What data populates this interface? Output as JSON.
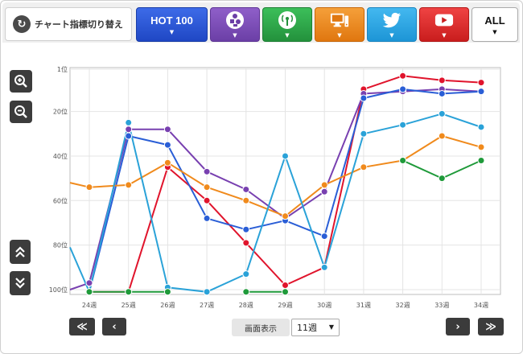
{
  "toolbar": {
    "switch_label": "チャート指標切り替え",
    "switch_icon": "refresh-icon",
    "buttons": [
      {
        "id": "hot100",
        "label": "HOT 100",
        "color": "#2d59d6",
        "icon": ""
      },
      {
        "id": "sales",
        "label": "",
        "color": "#7e4fb8",
        "icon": "sales-icon"
      },
      {
        "id": "radio",
        "label": "",
        "color": "#2eaa4a",
        "icon": "radio-antenna-icon"
      },
      {
        "id": "lookup",
        "label": "",
        "color": "#f08a1c",
        "icon": "pc-lookup-icon"
      },
      {
        "id": "twitter",
        "label": "",
        "color": "#2aa6e6",
        "icon": "twitter-bird-icon"
      },
      {
        "id": "youtube",
        "label": "",
        "color": "#e02b2b",
        "icon": "youtube-play-icon"
      },
      {
        "id": "all",
        "label": "ALL",
        "color": "#ffffff",
        "icon": ""
      }
    ]
  },
  "controls": {
    "zoom_in_icon": "zoom-in-icon",
    "zoom_out_icon": "zoom-out-icon",
    "scroll_up_icon": "double-chevron-up-icon",
    "scroll_down_icon": "double-chevron-down-icon"
  },
  "footer": {
    "first_label": "≪",
    "prev_label": "‹",
    "next_label": "›",
    "last_label": "≫",
    "display_label": "画面表示",
    "display_value": "11週"
  },
  "chart_data": {
    "type": "line",
    "title": "",
    "xlabel": "",
    "ylabel": "",
    "categories": [
      "24週",
      "25週",
      "26週",
      "27週",
      "28週",
      "29週",
      "30週",
      "31週",
      "32週",
      "33週",
      "34週"
    ],
    "ylim": [
      1,
      100
    ],
    "y_inverted": true,
    "y_ticks": [
      1,
      20,
      40,
      60,
      80,
      100
    ],
    "y_tick_suffix": "位",
    "grid": true,
    "series": [
      {
        "color": "#e0142c",
        "values": [
          101,
          101,
          45,
          60,
          79,
          98,
          90,
          10,
          4,
          6,
          7
        ]
      },
      {
        "color": "#7840b0",
        "values": [
          97,
          28,
          28,
          47,
          55,
          68,
          56,
          12,
          11,
          10,
          11
        ]
      },
      {
        "color": "#2a5ed6",
        "values": [
          101,
          31,
          35,
          68,
          73,
          69,
          76,
          14,
          10,
          12,
          11
        ]
      },
      {
        "color": "#f08a1c",
        "values": [
          54,
          53,
          43,
          54,
          60,
          67,
          53,
          45,
          42,
          31,
          36
        ]
      },
      {
        "color": "#2aa2d8",
        "values": [
          101,
          25,
          99,
          101,
          93,
          40,
          90,
          30,
          26,
          21,
          27
        ]
      },
      {
        "color": "#1f9a3a",
        "values": [
          101,
          101,
          101,
          null,
          101,
          101,
          null,
          null,
          42,
          50,
          42
        ]
      }
    ]
  }
}
